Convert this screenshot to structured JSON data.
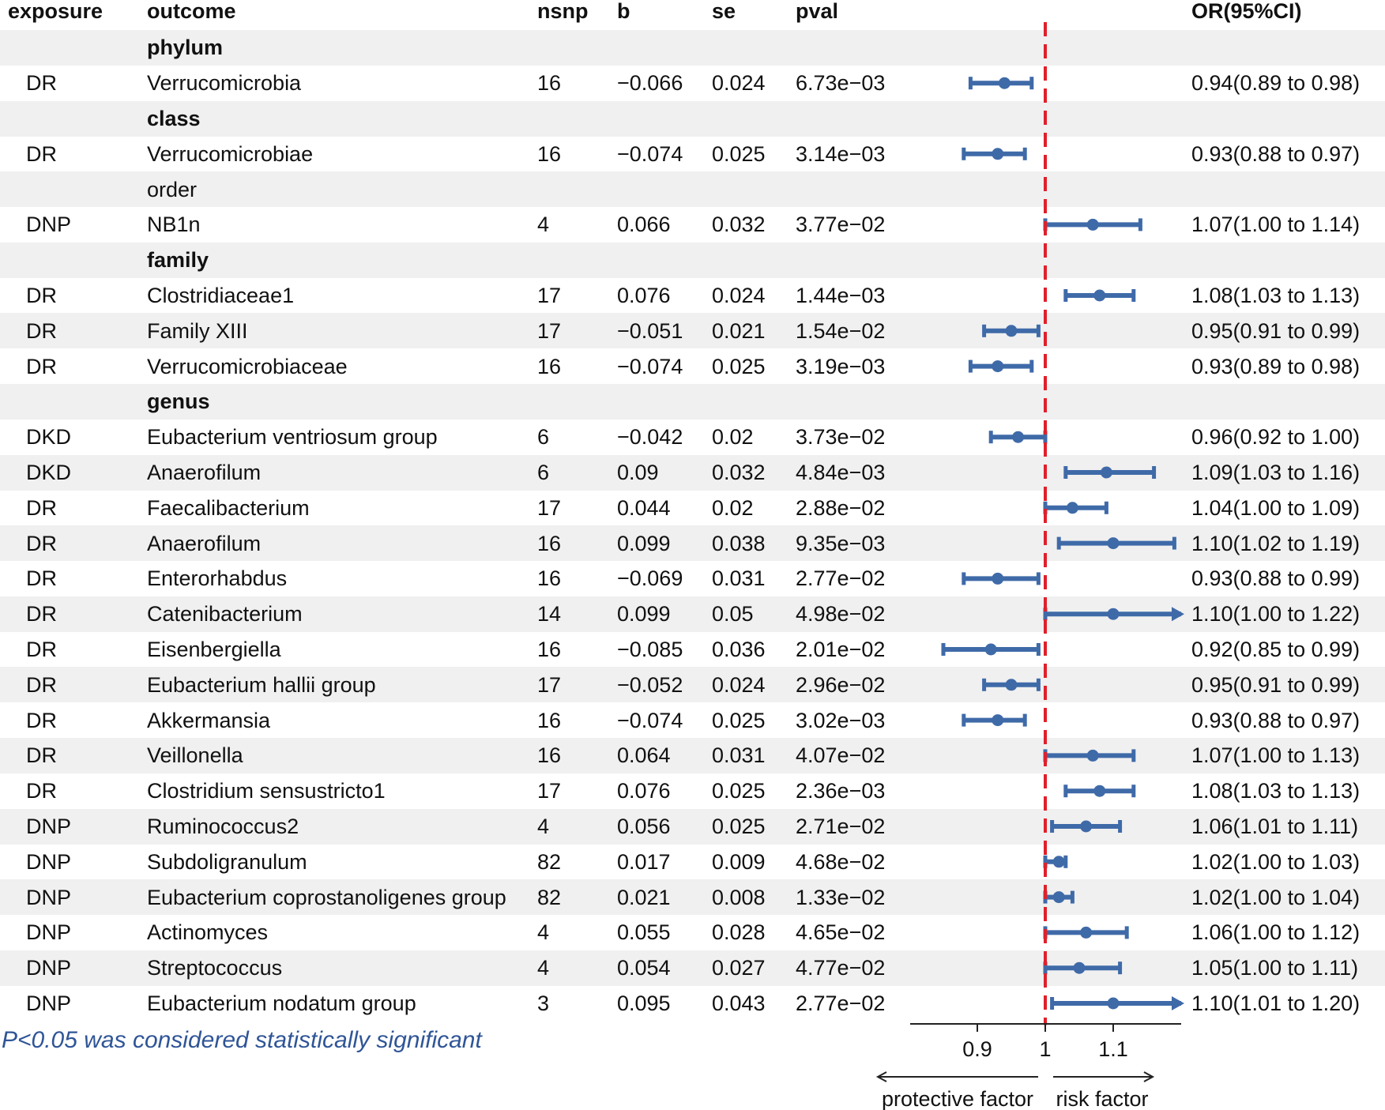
{
  "headers": {
    "exposure": "exposure",
    "outcome": "outcome",
    "nsnp": "nsnp",
    "b": "b",
    "se": "se",
    "pval": "pval",
    "or": "OR(95%CI)"
  },
  "colors": {
    "point": "#3f6aa8",
    "reference_line": "#e0202a",
    "band": "#f0f0f0",
    "footnote": "#2f5597"
  },
  "footnote": "P<0.05 was considered statistically significant",
  "chart_data": {
    "type": "forest",
    "reference_value": 1,
    "x_ticks": [
      0.9,
      1,
      1.1
    ],
    "x_tick_labels": [
      "0.9",
      "1",
      "1.1"
    ],
    "xlim": [
      0.8,
      1.2
    ],
    "left_direction_label": "protective factor",
    "right_direction_label": "risk factor",
    "rows": [
      {
        "kind": "group",
        "label": "phylum",
        "bold": true
      },
      {
        "kind": "data",
        "exposure": "DR",
        "outcome": "Verrucomicrobia",
        "nsnp": "16",
        "b": "−0.066",
        "se": "0.024",
        "pval": "6.73e−03",
        "or": 0.94,
        "lo": 0.89,
        "hi": 0.98,
        "or_text": "0.94(0.89 to 0.98)"
      },
      {
        "kind": "group",
        "label": "class",
        "bold": true
      },
      {
        "kind": "data",
        "exposure": "DR",
        "outcome": "Verrucomicrobiae",
        "nsnp": "16",
        "b": "−0.074",
        "se": "0.025",
        "pval": "3.14e−03",
        "or": 0.93,
        "lo": 0.88,
        "hi": 0.97,
        "or_text": "0.93(0.88 to 0.97)"
      },
      {
        "kind": "group",
        "label": "order",
        "bold": false
      },
      {
        "kind": "data",
        "exposure": "DNP",
        "outcome": "NB1n",
        "nsnp": "4",
        "b": "0.066",
        "se": "0.032",
        "pval": "3.77e−02",
        "or": 1.07,
        "lo": 1.0,
        "hi": 1.14,
        "or_text": "1.07(1.00 to 1.14)"
      },
      {
        "kind": "group",
        "label": "family",
        "bold": true
      },
      {
        "kind": "data",
        "exposure": "DR",
        "outcome": "Clostridiaceae1",
        "nsnp": "17",
        "b": "0.076",
        "se": "0.024",
        "pval": "1.44e−03",
        "or": 1.08,
        "lo": 1.03,
        "hi": 1.13,
        "or_text": "1.08(1.03 to 1.13)"
      },
      {
        "kind": "data",
        "exposure": "DR",
        "outcome": "Family XIII",
        "nsnp": "17",
        "b": "−0.051",
        "se": "0.021",
        "pval": "1.54e−02",
        "or": 0.95,
        "lo": 0.91,
        "hi": 0.99,
        "or_text": "0.95(0.91 to 0.99)"
      },
      {
        "kind": "data",
        "exposure": "DR",
        "outcome": "Verrucomicrobiaceae",
        "nsnp": "16",
        "b": "−0.074",
        "se": "0.025",
        "pval": "3.19e−03",
        "or": 0.93,
        "lo": 0.89,
        "hi": 0.98,
        "or_text": "0.93(0.89 to 0.98)"
      },
      {
        "kind": "group",
        "label": "genus",
        "bold": true
      },
      {
        "kind": "data",
        "exposure": "DKD",
        "outcome": "Eubacterium ventriosum group",
        "nsnp": "6",
        "b": "−0.042",
        "se": "0.02",
        "pval": "3.73e−02",
        "or": 0.96,
        "lo": 0.92,
        "hi": 1.0,
        "or_text": "0.96(0.92 to 1.00)"
      },
      {
        "kind": "data",
        "exposure": "DKD",
        "outcome": "Anaerofilum",
        "nsnp": "6",
        "b": "0.09",
        "se": "0.032",
        "pval": "4.84e−03",
        "or": 1.09,
        "lo": 1.03,
        "hi": 1.16,
        "or_text": "1.09(1.03 to 1.16)"
      },
      {
        "kind": "data",
        "exposure": "DR",
        "outcome": "Faecalibacterium",
        "nsnp": "17",
        "b": "0.044",
        "se": "0.02",
        "pval": "2.88e−02",
        "or": 1.04,
        "lo": 1.0,
        "hi": 1.09,
        "or_text": "1.04(1.00 to 1.09)"
      },
      {
        "kind": "data",
        "exposure": "DR",
        "outcome": "Anaerofilum",
        "nsnp": "16",
        "b": "0.099",
        "se": "0.038",
        "pval": "9.35e−03",
        "or": 1.1,
        "lo": 1.02,
        "hi": 1.19,
        "or_text": "1.10(1.02 to 1.19)"
      },
      {
        "kind": "data",
        "exposure": "DR",
        "outcome": "Enterorhabdus",
        "nsnp": "16",
        "b": "−0.069",
        "se": "0.031",
        "pval": "2.77e−02",
        "or": 0.93,
        "lo": 0.88,
        "hi": 0.99,
        "or_text": "0.93(0.88 to 0.99)"
      },
      {
        "kind": "data",
        "exposure": "DR",
        "outcome": "Catenibacterium",
        "nsnp": "14",
        "b": "0.099",
        "se": "0.05",
        "pval": "4.98e−02",
        "or": 1.1,
        "lo": 1.0,
        "hi": 1.22,
        "or_text": "1.10(1.00 to 1.22)",
        "clipped_right": true
      },
      {
        "kind": "data",
        "exposure": "DR",
        "outcome": "Eisenbergiella",
        "nsnp": "16",
        "b": "−0.085",
        "se": "0.036",
        "pval": "2.01e−02",
        "or": 0.92,
        "lo": 0.85,
        "hi": 0.99,
        "or_text": "0.92(0.85 to 0.99)"
      },
      {
        "kind": "data",
        "exposure": "DR",
        "outcome": "Eubacterium hallii group",
        "nsnp": "17",
        "b": "−0.052",
        "se": "0.024",
        "pval": "2.96e−02",
        "or": 0.95,
        "lo": 0.91,
        "hi": 0.99,
        "or_text": "0.95(0.91 to 0.99)"
      },
      {
        "kind": "data",
        "exposure": "DR",
        "outcome": "Akkermansia",
        "nsnp": "16",
        "b": "−0.074",
        "se": "0.025",
        "pval": "3.02e−03",
        "or": 0.93,
        "lo": 0.88,
        "hi": 0.97,
        "or_text": "0.93(0.88 to 0.97)"
      },
      {
        "kind": "data",
        "exposure": "DR",
        "outcome": "Veillonella",
        "nsnp": "16",
        "b": "0.064",
        "se": "0.031",
        "pval": "4.07e−02",
        "or": 1.07,
        "lo": 1.0,
        "hi": 1.13,
        "or_text": "1.07(1.00 to 1.13)"
      },
      {
        "kind": "data",
        "exposure": "DR",
        "outcome": "Clostridium sensustricto1",
        "nsnp": "17",
        "b": "0.076",
        "se": "0.025",
        "pval": "2.36e−03",
        "or": 1.08,
        "lo": 1.03,
        "hi": 1.13,
        "or_text": "1.08(1.03 to 1.13)"
      },
      {
        "kind": "data",
        "exposure": "DNP",
        "outcome": "Ruminococcus2",
        "nsnp": "4",
        "b": "0.056",
        "se": "0.025",
        "pval": "2.71e−02",
        "or": 1.06,
        "lo": 1.01,
        "hi": 1.11,
        "or_text": "1.06(1.01 to 1.11)"
      },
      {
        "kind": "data",
        "exposure": "DNP",
        "outcome": "Subdoligranulum",
        "nsnp": "82",
        "b": "0.017",
        "se": "0.009",
        "pval": "4.68e−02",
        "or": 1.02,
        "lo": 1.0,
        "hi": 1.03,
        "or_text": "1.02(1.00 to 1.03)"
      },
      {
        "kind": "data",
        "exposure": "DNP",
        "outcome": "Eubacterium coprostanoligenes group",
        "nsnp": "82",
        "b": "0.021",
        "se": "0.008",
        "pval": "1.33e−02",
        "or": 1.02,
        "lo": 1.0,
        "hi": 1.04,
        "or_text": "1.02(1.00 to 1.04)"
      },
      {
        "kind": "data",
        "exposure": "DNP",
        "outcome": "Actinomyces",
        "nsnp": "4",
        "b": "0.055",
        "se": "0.028",
        "pval": "4.65e−02",
        "or": 1.06,
        "lo": 1.0,
        "hi": 1.12,
        "or_text": "1.06(1.00 to 1.12)"
      },
      {
        "kind": "data",
        "exposure": "DNP",
        "outcome": "Streptococcus",
        "nsnp": "4",
        "b": "0.054",
        "se": "0.027",
        "pval": "4.77e−02",
        "or": 1.05,
        "lo": 1.0,
        "hi": 1.11,
        "or_text": "1.05(1.00 to 1.11)"
      },
      {
        "kind": "data",
        "exposure": "DNP",
        "outcome": "Eubacterium nodatum group",
        "nsnp": "3",
        "b": "0.095",
        "se": "0.043",
        "pval": "2.77e−02",
        "or": 1.1,
        "lo": 1.01,
        "hi": 1.2,
        "or_text": "1.10(1.01 to 1.20)",
        "clipped_right": true
      }
    ]
  }
}
